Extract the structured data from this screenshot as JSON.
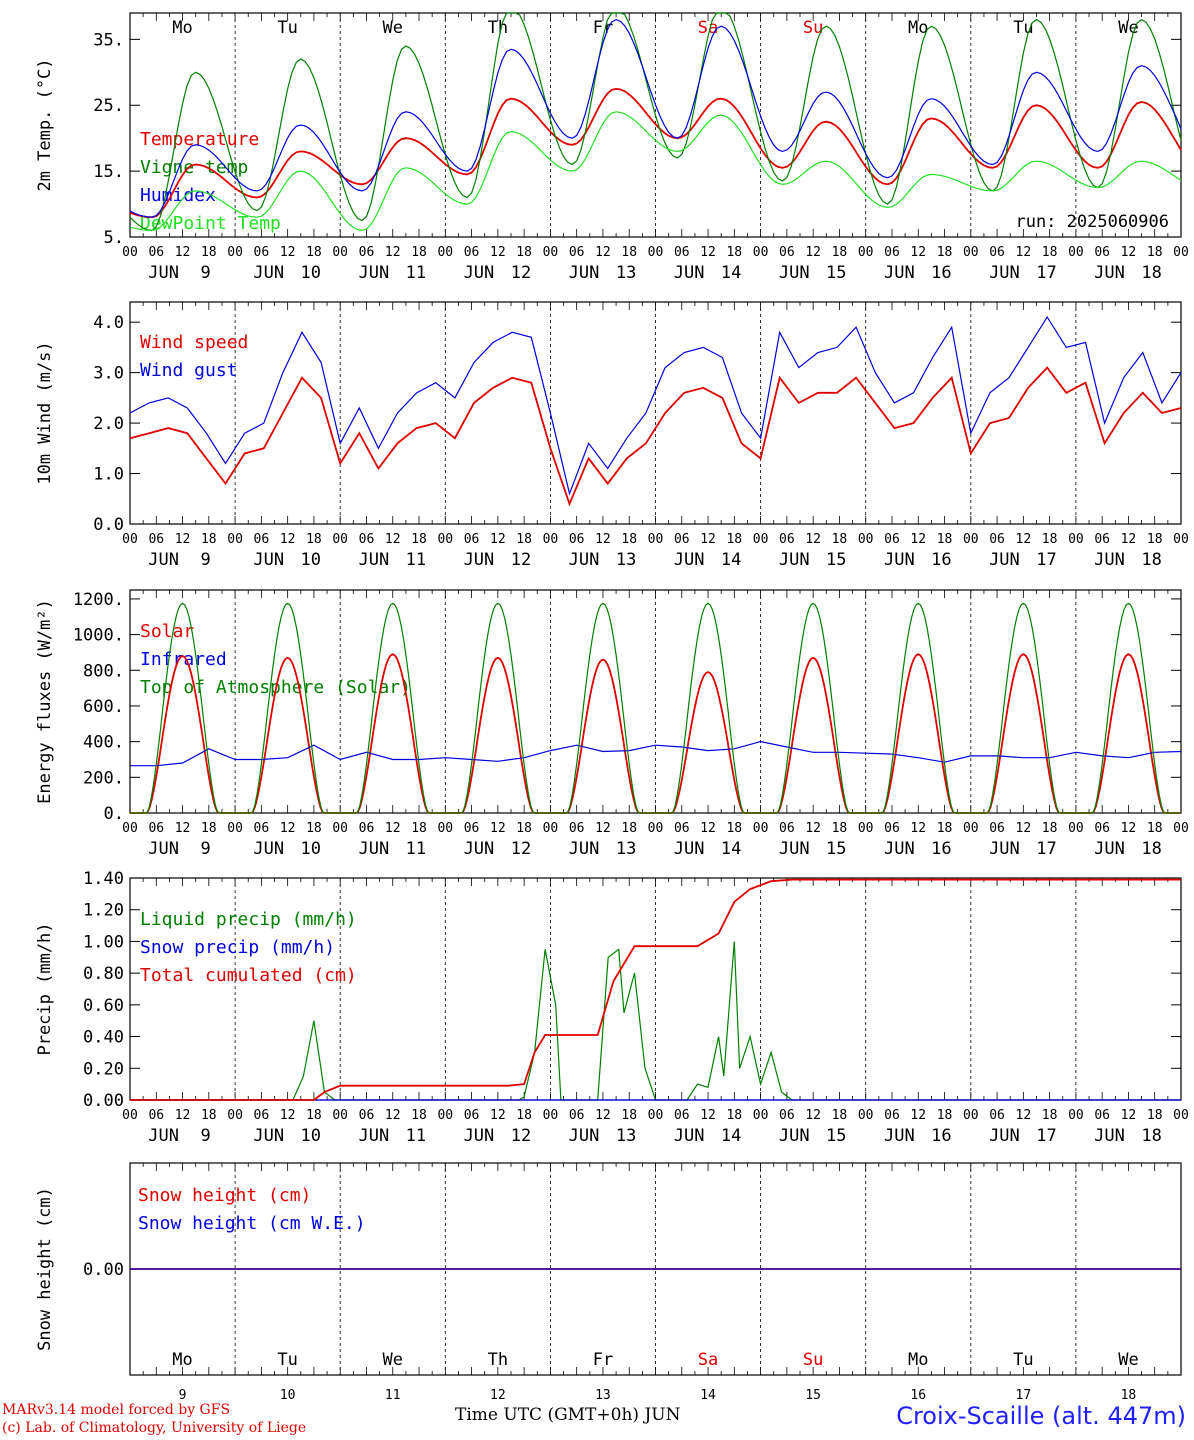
{
  "footer": {
    "model": "MARv3.14 model forced by GFS",
    "lab": "(c) Lab. of Climatology, University of Liege",
    "axis_title": "Time UTC (GMT+0h) JUN",
    "station": "Croix-Scaille (alt. 447m)"
  },
  "colors": {
    "red": "#e00000",
    "green": "#008000",
    "blue": "#0000e0",
    "lightgreen": "#20e020",
    "weekend": "#e00000"
  },
  "chart_data": [
    {
      "type": "line",
      "ylabel": "2m Temp. (°C)",
      "ylim": [
        5,
        39
      ],
      "yticks": [
        "5.",
        "15.",
        "25.",
        "35."
      ],
      "ytick_values": [
        5,
        15,
        25,
        35
      ],
      "run_label": "run: 2025060906",
      "day_names": [
        "Mo",
        "Tu",
        "We",
        "Th",
        "Fr",
        "Sa",
        "Su",
        "Mo",
        "Tu",
        "We"
      ],
      "weekend_days": [
        5,
        6
      ],
      "legend": [
        "Temperature",
        "Vigne temp",
        "Humidex",
        "DewPoint Temp"
      ],
      "series": [
        {
          "name": "Temperature",
          "color": "red",
          "min": [
            8,
            11,
            13,
            14.5,
            19,
            20,
            15.5,
            13,
            15.5,
            15.5
          ],
          "max": [
            16,
            18,
            20,
            26,
            27.5,
            26,
            22.5,
            23,
            25,
            25.5
          ]
        },
        {
          "name": "Vigne temp",
          "color": "green",
          "min": [
            6,
            9,
            7.5,
            11,
            16,
            17,
            13.5,
            10,
            12,
            12.5
          ],
          "max": [
            30,
            32,
            34,
            40,
            40,
            40,
            37,
            37,
            38,
            38
          ]
        },
        {
          "name": "Humidex",
          "color": "blue",
          "min": [
            8,
            12,
            12,
            15,
            20,
            20,
            18,
            14,
            16,
            18
          ],
          "max": [
            19,
            22,
            24,
            33.5,
            38,
            37,
            27,
            26,
            30,
            31
          ]
        },
        {
          "name": "DewPoint Temp",
          "color": "lightgreen",
          "min": [
            6,
            8,
            6,
            10,
            15,
            18,
            13,
            9.5,
            12,
            12.5
          ],
          "max": [
            12,
            15,
            15.5,
            21,
            24,
            23.5,
            16.5,
            14.5,
            16.5,
            16.5
          ]
        }
      ]
    },
    {
      "type": "line",
      "ylabel": "10m Wind (m/s)",
      "ylim": [
        0,
        4.4
      ],
      "yticks": [
        "0.0",
        "1.0",
        "2.0",
        "3.0",
        "4.0"
      ],
      "ytick_values": [
        0,
        1,
        2,
        3,
        4
      ],
      "legend": [
        "Wind speed",
        "Wind gust"
      ],
      "series": [
        {
          "name": "Wind speed",
          "color": "red",
          "values": [
            1.7,
            1.8,
            1.9,
            1.8,
            1.3,
            0.8,
            1.4,
            1.5,
            2.2,
            2.9,
            2.5,
            1.2,
            1.8,
            1.1,
            1.6,
            1.9,
            2.0,
            1.7,
            2.4,
            2.7,
            2.9,
            2.8,
            1.5,
            0.4,
            1.3,
            0.8,
            1.3,
            1.6,
            2.2,
            2.6,
            2.7,
            2.5,
            1.6,
            1.3,
            2.9,
            2.4,
            2.6,
            2.6,
            2.9,
            2.4,
            1.9,
            2.0,
            2.5,
            2.9,
            1.4,
            2.0,
            2.1,
            2.7,
            3.1,
            2.6,
            2.8,
            1.6,
            2.2,
            2.6,
            2.2,
            2.3
          ]
        },
        {
          "name": "Wind gust",
          "color": "blue",
          "values": [
            2.2,
            2.4,
            2.5,
            2.3,
            1.8,
            1.2,
            1.8,
            2.0,
            3.0,
            3.8,
            3.2,
            1.6,
            2.3,
            1.5,
            2.2,
            2.6,
            2.8,
            2.5,
            3.2,
            3.6,
            3.8,
            3.7,
            2.2,
            0.6,
            1.6,
            1.1,
            1.7,
            2.2,
            3.1,
            3.4,
            3.5,
            3.3,
            2.2,
            1.7,
            3.8,
            3.1,
            3.4,
            3.5,
            3.9,
            3.0,
            2.4,
            2.6,
            3.3,
            3.9,
            1.8,
            2.6,
            2.9,
            3.5,
            4.1,
            3.5,
            3.6,
            2.0,
            2.9,
            3.4,
            2.4,
            3.0
          ]
        }
      ]
    },
    {
      "type": "line",
      "ylabel": "Energy fluxes (W/m²)",
      "ylim": [
        0,
        1250
      ],
      "yticks": [
        "0.",
        "200.",
        "400.",
        "600.",
        "800.",
        "1000.",
        "1200."
      ],
      "ytick_values": [
        0,
        200,
        400,
        600,
        800,
        1000,
        1200
      ],
      "legend": [
        "Solar",
        "Infrared",
        "Top of Atmosphere (Solar)"
      ],
      "series": [
        {
          "name": "Solar",
          "color": "red",
          "daily_peak": [
            880,
            870,
            890,
            870,
            860,
            790,
            870,
            890,
            890,
            890
          ]
        },
        {
          "name": "Infrared",
          "color": "blue",
          "values": [
            265,
            265,
            280,
            360,
            300,
            300,
            310,
            380,
            300,
            340,
            300,
            300,
            310,
            300,
            290,
            310,
            350,
            380,
            345,
            350,
            380,
            370,
            350,
            360,
            400,
            370,
            340,
            340,
            335,
            330,
            310,
            285,
            320,
            320,
            310,
            310,
            340,
            320,
            310,
            340,
            345
          ]
        },
        {
          "name": "Top of Atmosphere (Solar)",
          "color": "green",
          "daily_peak": [
            1175,
            1175,
            1175,
            1175,
            1175,
            1175,
            1175,
            1175,
            1175,
            1175
          ]
        }
      ]
    },
    {
      "type": "line",
      "ylabel": "Precip (mm/h)",
      "ylim": [
        0,
        1.4
      ],
      "yticks": [
        "0.00",
        "0.20",
        "0.40",
        "0.60",
        "0.80",
        "1.00",
        "1.20",
        "1.40"
      ],
      "ytick_values": [
        0,
        0.2,
        0.4,
        0.6,
        0.8,
        1.0,
        1.2,
        1.4
      ],
      "legend": [
        "Liquid precip (mm/h)",
        "Snow precip (mm/h)",
        "Total cumulated (cm)"
      ],
      "series": [
        {
          "name": "Liquid precip (mm/h)",
          "color": "green",
          "points": [
            [
              0,
              0
            ],
            [
              1.55,
              0
            ],
            [
              1.65,
              0.15
            ],
            [
              1.75,
              0.5
            ],
            [
              1.85,
              0.05
            ],
            [
              1.95,
              0
            ],
            [
              3.7,
              0
            ],
            [
              3.75,
              0.02
            ],
            [
              3.85,
              0.3
            ],
            [
              3.95,
              0.95
            ],
            [
              4.05,
              0.6
            ],
            [
              4.1,
              0
            ],
            [
              4.45,
              0
            ],
            [
              4.55,
              0.9
            ],
            [
              4.65,
              0.95
            ],
            [
              4.7,
              0.55
            ],
            [
              4.8,
              0.8
            ],
            [
              4.9,
              0.2
            ],
            [
              5.0,
              0
            ],
            [
              5.3,
              0
            ],
            [
              5.4,
              0.1
            ],
            [
              5.5,
              0.08
            ],
            [
              5.6,
              0.4
            ],
            [
              5.65,
              0.15
            ],
            [
              5.75,
              1.0
            ],
            [
              5.8,
              0.2
            ],
            [
              5.9,
              0.4
            ],
            [
              6.0,
              0.1
            ],
            [
              6.1,
              0.3
            ],
            [
              6.2,
              0.05
            ],
            [
              6.3,
              0
            ],
            [
              10,
              0
            ]
          ]
        },
        {
          "name": "Snow precip (mm/h)",
          "color": "blue",
          "points": [
            [
              0,
              0
            ],
            [
              10,
              0
            ]
          ]
        },
        {
          "name": "Total cumulated (cm)",
          "color": "red",
          "points": [
            [
              0,
              0
            ],
            [
              1.75,
              0
            ],
            [
              1.85,
              0.05
            ],
            [
              2.0,
              0.09
            ],
            [
              3.6,
              0.09
            ],
            [
              3.75,
              0.1
            ],
            [
              3.85,
              0.3
            ],
            [
              3.95,
              0.41
            ],
            [
              4.45,
              0.41
            ],
            [
              4.6,
              0.75
            ],
            [
              4.8,
              0.97
            ],
            [
              5.4,
              0.97
            ],
            [
              5.6,
              1.05
            ],
            [
              5.75,
              1.25
            ],
            [
              5.9,
              1.33
            ],
            [
              6.1,
              1.38
            ],
            [
              6.3,
              1.39
            ],
            [
              10,
              1.39
            ]
          ]
        }
      ]
    },
    {
      "type": "line",
      "ylabel": "Snow height (cm)",
      "ylim": [
        -1,
        1
      ],
      "yticks": [
        "0.00"
      ],
      "ytick_values": [
        0
      ],
      "legend": [
        "Snow height (cm)",
        "Snow height (cm W.E.)"
      ],
      "day_names": [
        "Mo",
        "Tu",
        "We",
        "Th",
        "Fr",
        "Sa",
        "Su",
        "Mo",
        "Tu",
        "We"
      ],
      "weekend_days": [
        5,
        6
      ],
      "date_numbers": [
        "9",
        "10",
        "11",
        "12",
        "13",
        "14",
        "15",
        "16",
        "17",
        "18"
      ],
      "series": [
        {
          "name": "Snow height (cm)",
          "color": "red",
          "points": [
            [
              0,
              0
            ],
            [
              10,
              0
            ]
          ]
        },
        {
          "name": "Snow height (cm W.E.)",
          "color": "blue",
          "points": [
            [
              0,
              0
            ],
            [
              10,
              0
            ]
          ]
        }
      ]
    }
  ],
  "x_axis": {
    "hour_labels": [
      "00",
      "06",
      "12",
      "18"
    ],
    "final_hour": "00",
    "month": "JUN",
    "dates": [
      "9",
      "10",
      "11",
      "12",
      "13",
      "14",
      "15",
      "16",
      "17",
      "18"
    ]
  }
}
